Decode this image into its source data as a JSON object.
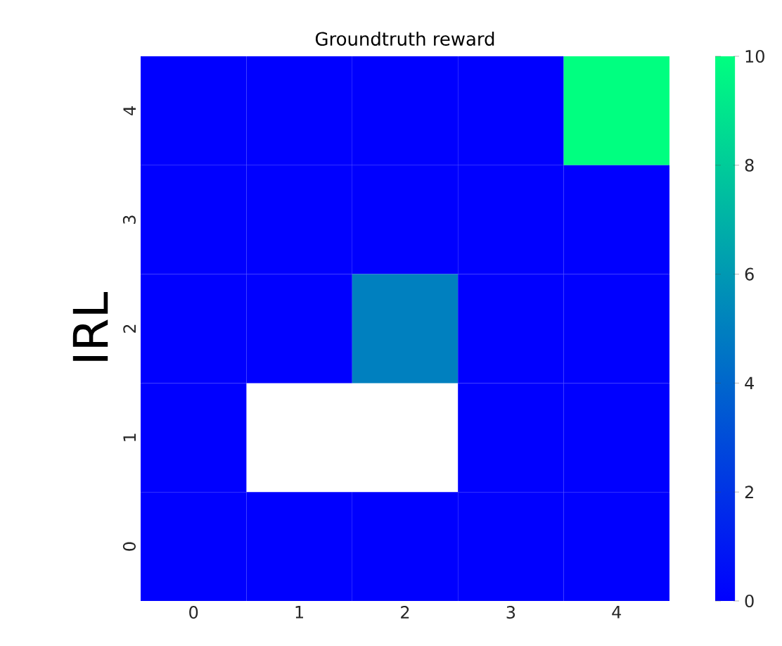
{
  "chart_data": {
    "type": "heatmap",
    "title": "Groundtruth reward",
    "ylabel": "IRL",
    "categories": [
      "0",
      "1",
      "2",
      "3",
      "4"
    ],
    "y_categories": [
      "4",
      "3",
      "2",
      "1",
      "0"
    ],
    "cells": [
      [
        0,
        0,
        0,
        0,
        10
      ],
      [
        0,
        0,
        0,
        0,
        0
      ],
      [
        0,
        0,
        5,
        0,
        0
      ],
      [
        0,
        null,
        null,
        0,
        0
      ],
      [
        0,
        0,
        0,
        0,
        0
      ]
    ],
    "clim": [
      0,
      10
    ],
    "cticks": [
      0,
      2,
      4,
      6,
      8,
      10
    ]
  }
}
